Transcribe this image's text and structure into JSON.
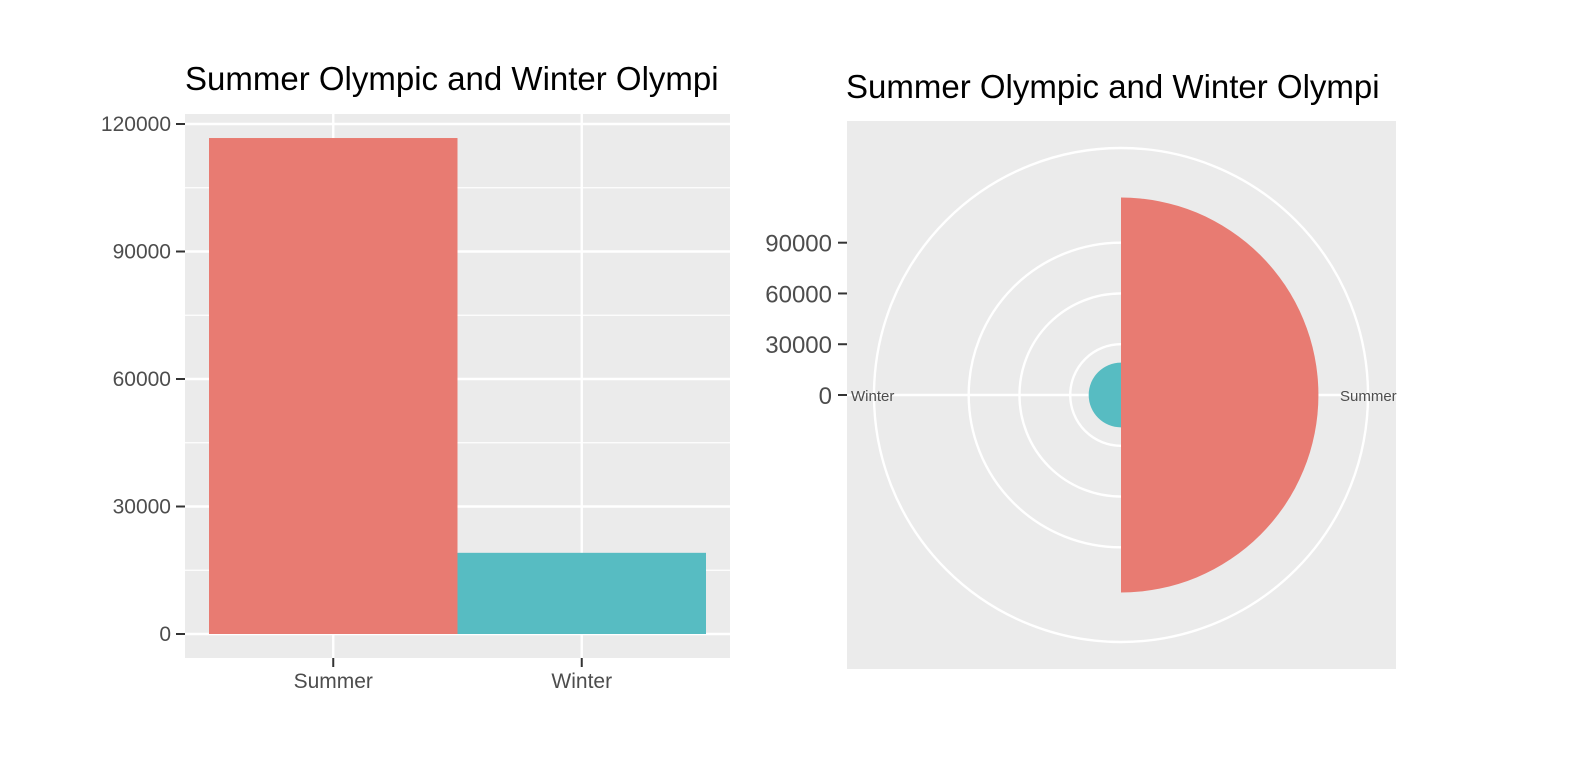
{
  "colors": {
    "panel_bg": "#ebebeb",
    "grid": "#ffffff",
    "axis_text": "#4d4d4d",
    "summer": "#e87b72",
    "winter": "#57bcc2"
  },
  "chart_data": [
    {
      "type": "bar",
      "title": "Summer Olympic and Winter Olympi",
      "xlabel": "",
      "ylabel": "",
      "categories": [
        "Summer",
        "Winter"
      ],
      "values": [
        116700,
        19100
      ],
      "ylim": [
        0,
        120000
      ],
      "yticks": [
        0,
        30000,
        60000,
        90000,
        120000
      ],
      "ytick_labels": [
        "0",
        "30000",
        "60000",
        "90000",
        "120000"
      ],
      "grid": true,
      "legend": "none"
    },
    {
      "type": "pie",
      "coord": "polar (theta = x)",
      "title": "Summer Olympic and Winter Olympi",
      "categories": [
        "Summer",
        "Winter"
      ],
      "values": [
        116700,
        19100
      ],
      "theta_labels": [
        "Summer",
        "Winter"
      ],
      "rticks": [
        0,
        30000,
        60000,
        90000
      ],
      "rtick_labels": [
        "0",
        "30000",
        "60000",
        "90000"
      ],
      "grid": true,
      "legend": "none"
    }
  ]
}
